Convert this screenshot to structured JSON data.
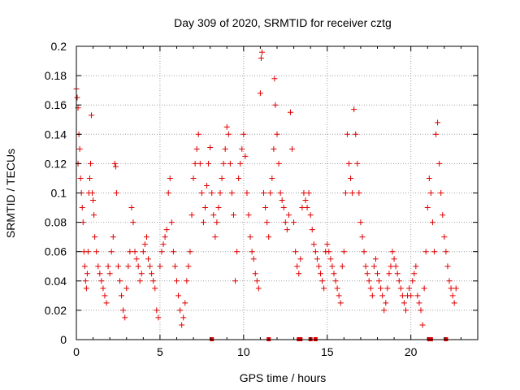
{
  "chart_data": {
    "type": "scatter",
    "title": "Day 309 of 2020, SRMTID for receiver cztg",
    "xlabel": "GPS time / hours",
    "ylabel": "SRMTID / TECUs",
    "xlim": [
      0,
      24
    ],
    "ylim": [
      0,
      0.2
    ],
    "x_ticks": [
      0,
      5,
      10,
      15,
      20
    ],
    "x_tick_labels": [
      "0",
      "5",
      "10",
      "15",
      "20"
    ],
    "y_ticks": [
      0,
      0.02,
      0.04,
      0.06,
      0.08,
      0.1,
      0.12,
      0.14,
      0.16,
      0.18,
      0.2
    ],
    "y_tick_labels": [
      "0",
      "0.02",
      "0.04",
      "0.06",
      "0.08",
      "0.1",
      "0.12",
      "0.14",
      "0.16",
      "0.18",
      "0.2"
    ],
    "grid": true,
    "marker": "+",
    "color": "#e00000",
    "series": [
      {
        "points": [
          [
            0.0,
            0.171
          ],
          [
            0.05,
            0.165
          ],
          [
            0.1,
            0.158
          ],
          [
            0.1,
            0.12
          ],
          [
            0.15,
            0.14
          ],
          [
            0.2,
            0.13
          ],
          [
            0.25,
            0.11
          ],
          [
            0.3,
            0.1
          ],
          [
            0.35,
            0.09
          ],
          [
            0.4,
            0.08
          ],
          [
            0.45,
            0.06
          ],
          [
            0.5,
            0.05
          ],
          [
            0.55,
            0.04
          ],
          [
            0.6,
            0.035
          ],
          [
            0.65,
            0.045
          ],
          [
            0.7,
            0.06
          ],
          [
            0.75,
            0.1
          ],
          [
            0.8,
            0.11
          ],
          [
            0.85,
            0.12
          ],
          [
            0.9,
            0.153
          ],
          [
            0.95,
            0.1
          ],
          [
            1.0,
            0.095
          ],
          [
            1.05,
            0.085
          ],
          [
            1.1,
            0.07
          ],
          [
            1.2,
            0.06
          ],
          [
            1.3,
            0.05
          ],
          [
            1.4,
            0.045
          ],
          [
            1.5,
            0.04
          ],
          [
            1.6,
            0.035
          ],
          [
            1.7,
            0.03
          ],
          [
            1.8,
            0.025
          ],
          [
            1.9,
            0.05
          ],
          [
            2.0,
            0.045
          ],
          [
            2.1,
            0.06
          ],
          [
            2.2,
            0.07
          ],
          [
            2.3,
            0.12
          ],
          [
            2.35,
            0.118
          ],
          [
            2.4,
            0.1
          ],
          [
            2.5,
            0.05
          ],
          [
            2.6,
            0.04
          ],
          [
            2.7,
            0.03
          ],
          [
            2.8,
            0.02
          ],
          [
            2.9,
            0.015
          ],
          [
            3.0,
            0.035
          ],
          [
            3.1,
            0.05
          ],
          [
            3.2,
            0.06
          ],
          [
            3.3,
            0.09
          ],
          [
            3.4,
            0.08
          ],
          [
            3.5,
            0.06
          ],
          [
            3.6,
            0.055
          ],
          [
            3.7,
            0.05
          ],
          [
            3.8,
            0.04
          ],
          [
            3.9,
            0.045
          ],
          [
            4.0,
            0.06
          ],
          [
            4.1,
            0.065
          ],
          [
            4.2,
            0.07
          ],
          [
            4.3,
            0.055
          ],
          [
            4.4,
            0.05
          ],
          [
            4.5,
            0.045
          ],
          [
            4.6,
            0.04
          ],
          [
            4.7,
            0.035
          ],
          [
            4.8,
            0.02
          ],
          [
            4.9,
            0.015
          ],
          [
            5.0,
            0.05
          ],
          [
            5.1,
            0.06
          ],
          [
            5.2,
            0.065
          ],
          [
            5.3,
            0.07
          ],
          [
            5.4,
            0.075
          ],
          [
            5.5,
            0.1
          ],
          [
            5.6,
            0.11
          ],
          [
            5.7,
            0.08
          ],
          [
            5.8,
            0.06
          ],
          [
            5.9,
            0.05
          ],
          [
            6.0,
            0.04
          ],
          [
            6.1,
            0.03
          ],
          [
            6.2,
            0.02
          ],
          [
            6.3,
            0.01
          ],
          [
            6.4,
            0.015
          ],
          [
            6.5,
            0.025
          ],
          [
            6.6,
            0.04
          ],
          [
            6.7,
            0.05
          ],
          [
            6.8,
            0.06
          ],
          [
            6.9,
            0.085
          ],
          [
            7.0,
            0.11
          ],
          [
            7.1,
            0.12
          ],
          [
            7.2,
            0.13
          ],
          [
            7.3,
            0.14
          ],
          [
            7.4,
            0.12
          ],
          [
            7.5,
            0.1
          ],
          [
            7.6,
            0.08
          ],
          [
            7.7,
            0.09
          ],
          [
            7.8,
            0.105
          ],
          [
            7.9,
            0.12
          ],
          [
            8.0,
            0.131
          ],
          [
            8.1,
            0.1
          ],
          [
            8.2,
            0.085
          ],
          [
            8.3,
            0.07
          ],
          [
            8.4,
            0.08
          ],
          [
            8.5,
            0.09
          ],
          [
            8.6,
            0.1
          ],
          [
            8.7,
            0.11
          ],
          [
            8.8,
            0.12
          ],
          [
            8.9,
            0.13
          ],
          [
            9.0,
            0.145
          ],
          [
            9.1,
            0.14
          ],
          [
            9.2,
            0.12
          ],
          [
            9.3,
            0.1
          ],
          [
            9.4,
            0.085
          ],
          [
            9.5,
            0.04
          ],
          [
            9.6,
            0.06
          ],
          [
            9.7,
            0.11
          ],
          [
            9.8,
            0.12
          ],
          [
            9.9,
            0.13
          ],
          [
            10.0,
            0.14
          ],
          [
            10.1,
            0.125
          ],
          [
            10.2,
            0.1
          ],
          [
            10.3,
            0.085
          ],
          [
            10.4,
            0.07
          ],
          [
            10.5,
            0.06
          ],
          [
            10.6,
            0.055
          ],
          [
            10.7,
            0.045
          ],
          [
            10.8,
            0.04
          ],
          [
            10.9,
            0.035
          ],
          [
            11.0,
            0.168
          ],
          [
            11.05,
            0.192
          ],
          [
            11.1,
            0.196
          ],
          [
            11.2,
            0.1
          ],
          [
            11.3,
            0.09
          ],
          [
            11.4,
            0.08
          ],
          [
            11.5,
            0.07
          ],
          [
            11.6,
            0.1
          ],
          [
            11.7,
            0.11
          ],
          [
            11.8,
            0.13
          ],
          [
            11.85,
            0.178
          ],
          [
            11.9,
            0.16
          ],
          [
            12.0,
            0.14
          ],
          [
            12.1,
            0.12
          ],
          [
            12.2,
            0.1
          ],
          [
            12.3,
            0.095
          ],
          [
            12.4,
            0.09
          ],
          [
            12.5,
            0.08
          ],
          [
            12.6,
            0.075
          ],
          [
            12.7,
            0.085
          ],
          [
            12.8,
            0.155
          ],
          [
            12.9,
            0.13
          ],
          [
            13.0,
            0.08
          ],
          [
            13.1,
            0.06
          ],
          [
            13.2,
            0.05
          ],
          [
            13.3,
            0.045
          ],
          [
            13.4,
            0.055
          ],
          [
            13.5,
            0.09
          ],
          [
            13.6,
            0.1
          ],
          [
            13.7,
            0.095
          ],
          [
            13.8,
            0.09
          ],
          [
            13.9,
            0.1
          ],
          [
            14.0,
            0.085
          ],
          [
            14.1,
            0.075
          ],
          [
            14.2,
            0.065
          ],
          [
            14.3,
            0.06
          ],
          [
            14.4,
            0.055
          ],
          [
            14.5,
            0.05
          ],
          [
            14.6,
            0.045
          ],
          [
            14.7,
            0.04
          ],
          [
            14.8,
            0.035
          ],
          [
            14.9,
            0.06
          ],
          [
            15.0,
            0.065
          ],
          [
            15.1,
            0.06
          ],
          [
            15.2,
            0.055
          ],
          [
            15.3,
            0.05
          ],
          [
            15.4,
            0.045
          ],
          [
            15.5,
            0.04
          ],
          [
            15.6,
            0.035
          ],
          [
            15.7,
            0.03
          ],
          [
            15.8,
            0.025
          ],
          [
            15.9,
            0.05
          ],
          [
            16.0,
            0.06
          ],
          [
            16.1,
            0.1
          ],
          [
            16.2,
            0.14
          ],
          [
            16.3,
            0.12
          ],
          [
            16.4,
            0.11
          ],
          [
            16.5,
            0.1
          ],
          [
            16.6,
            0.157
          ],
          [
            16.7,
            0.14
          ],
          [
            16.8,
            0.12
          ],
          [
            16.9,
            0.1
          ],
          [
            17.0,
            0.08
          ],
          [
            17.1,
            0.07
          ],
          [
            17.2,
            0.06
          ],
          [
            17.3,
            0.05
          ],
          [
            17.4,
            0.045
          ],
          [
            17.5,
            0.04
          ],
          [
            17.6,
            0.035
          ],
          [
            17.7,
            0.03
          ],
          [
            17.8,
            0.05
          ],
          [
            17.9,
            0.055
          ],
          [
            18.0,
            0.045
          ],
          [
            18.1,
            0.04
          ],
          [
            18.2,
            0.035
          ],
          [
            18.3,
            0.03
          ],
          [
            18.4,
            0.02
          ],
          [
            18.5,
            0.025
          ],
          [
            18.6,
            0.035
          ],
          [
            18.7,
            0.045
          ],
          [
            18.8,
            0.05
          ],
          [
            18.9,
            0.06
          ],
          [
            19.0,
            0.055
          ],
          [
            19.1,
            0.05
          ],
          [
            19.2,
            0.045
          ],
          [
            19.3,
            0.04
          ],
          [
            19.4,
            0.035
          ],
          [
            19.5,
            0.03
          ],
          [
            19.6,
            0.025
          ],
          [
            19.7,
            0.02
          ],
          [
            19.8,
            0.03
          ],
          [
            19.9,
            0.035
          ],
          [
            20.0,
            0.03
          ],
          [
            20.1,
            0.04
          ],
          [
            20.2,
            0.045
          ],
          [
            20.3,
            0.05
          ],
          [
            20.4,
            0.03
          ],
          [
            20.5,
            0.025
          ],
          [
            20.6,
            0.02
          ],
          [
            20.7,
            0.01
          ],
          [
            20.8,
            0.035
          ],
          [
            20.9,
            0.06
          ],
          [
            21.0,
            0.09
          ],
          [
            21.1,
            0.11
          ],
          [
            21.2,
            0.1
          ],
          [
            21.3,
            0.08
          ],
          [
            21.4,
            0.06
          ],
          [
            21.5,
            0.14
          ],
          [
            21.6,
            0.148
          ],
          [
            21.7,
            0.12
          ],
          [
            21.8,
            0.1
          ],
          [
            21.9,
            0.085
          ],
          [
            22.0,
            0.07
          ],
          [
            22.1,
            0.06
          ],
          [
            22.2,
            0.05
          ],
          [
            22.3,
            0.04
          ],
          [
            22.4,
            0.035
          ],
          [
            22.5,
            0.03
          ],
          [
            22.6,
            0.025
          ],
          [
            22.7,
            0.035
          ]
        ]
      }
    ],
    "axis_markers_x": [
      8.1,
      11.5,
      13.3,
      13.4,
      14.0,
      14.3,
      21.1,
      21.2,
      22.1
    ]
  }
}
